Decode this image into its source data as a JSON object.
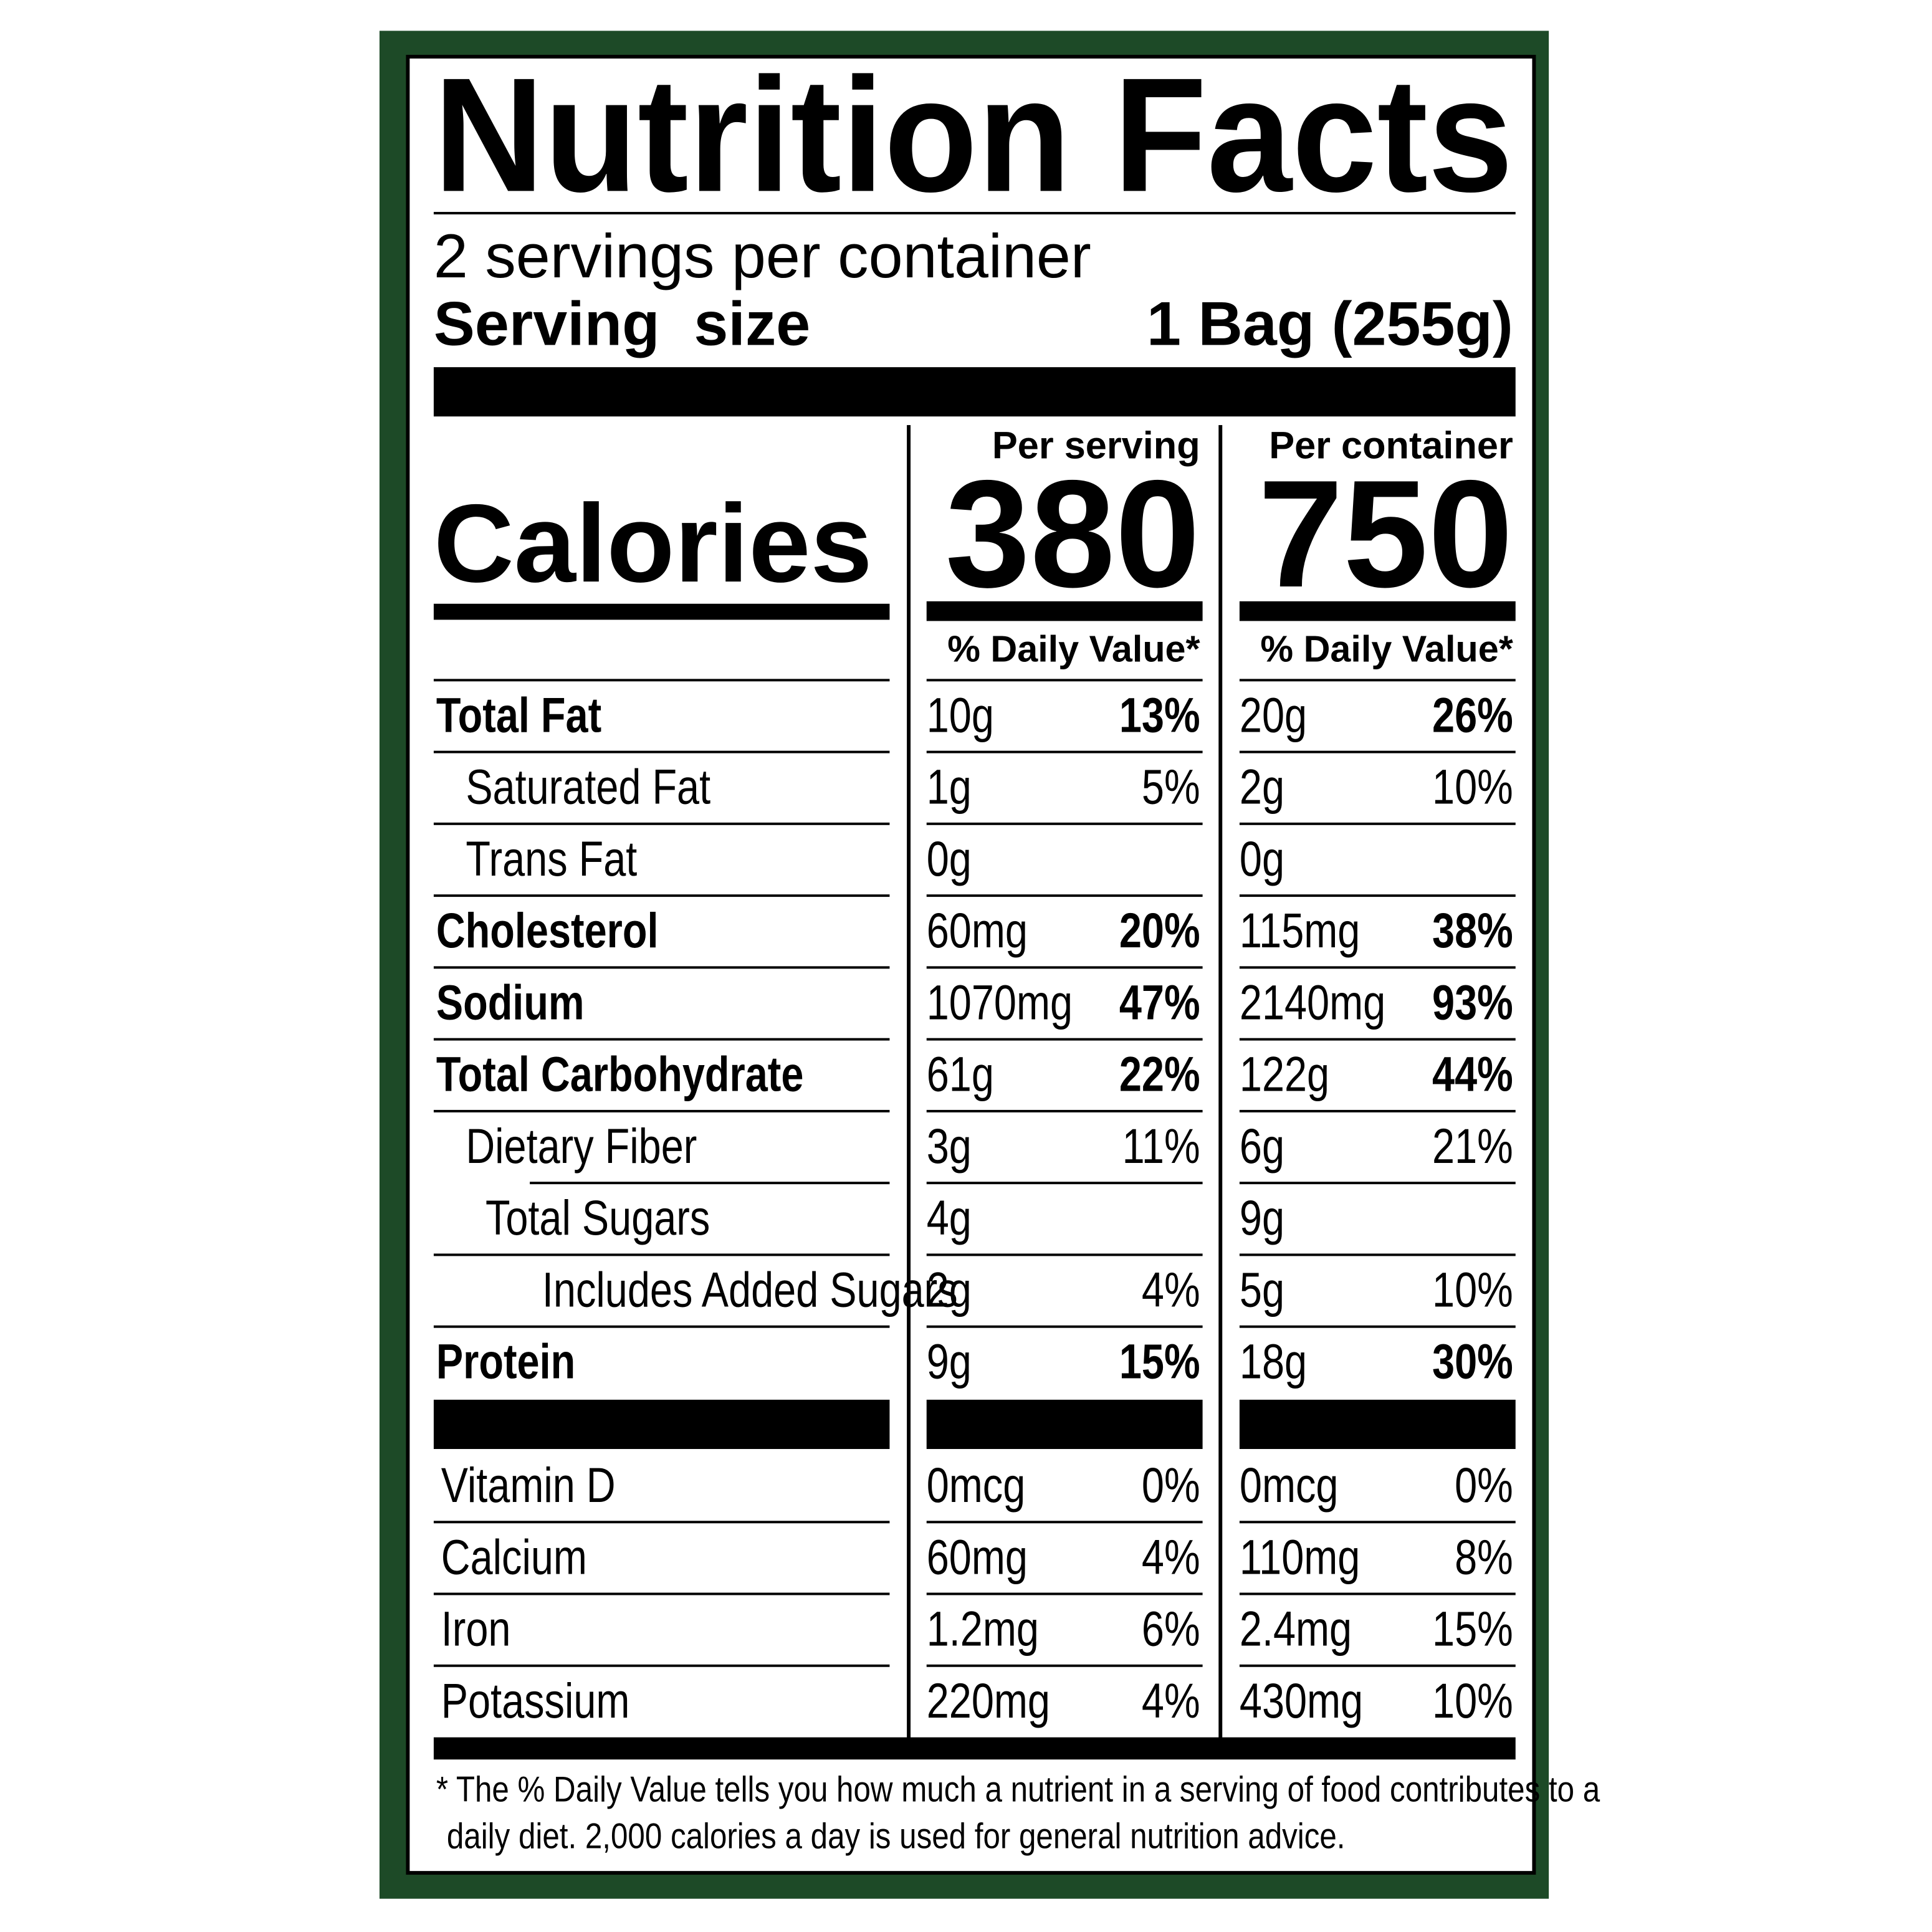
{
  "header": {
    "title": "Nutrition Facts",
    "servings_per_container": "2 servings per container",
    "serving_size_label": "Serving  size",
    "serving_size_value": "1 Bag (255g)"
  },
  "columns": [
    {
      "heading": "Per serving",
      "calories": "380",
      "daily_value_heading": "% Daily Value*"
    },
    {
      "heading": "Per container",
      "calories": "750",
      "daily_value_heading": "% Daily Value*"
    }
  ],
  "calories_label": "Calories",
  "nutrients": [
    {
      "name": "Total Fat",
      "amounts": [
        "10g",
        "20g"
      ],
      "daily_values": [
        "13%",
        "26%"
      ]
    },
    {
      "name": "Saturated Fat",
      "amounts": [
        "1g",
        "2g"
      ],
      "daily_values": [
        "5%",
        "10%"
      ]
    },
    {
      "name": "Trans Fat",
      "amounts": [
        "0g",
        "0g"
      ],
      "daily_values": [
        null,
        null
      ]
    },
    {
      "name": "Cholesterol",
      "amounts": [
        "60mg",
        "115mg"
      ],
      "daily_values": [
        "20%",
        "38%"
      ]
    },
    {
      "name": "Sodium",
      "amounts": [
        "1070mg",
        "2140mg"
      ],
      "daily_values": [
        "47%",
        "93%"
      ]
    },
    {
      "name": "Total Carbohydrate",
      "amounts": [
        "61g",
        "122g"
      ],
      "daily_values": [
        "22%",
        "44%"
      ]
    },
    {
      "name": "Dietary Fiber",
      "amounts": [
        "3g",
        "6g"
      ],
      "daily_values": [
        "11%",
        "21%"
      ]
    },
    {
      "name": "Total Sugars",
      "amounts": [
        "4g",
        "9g"
      ],
      "daily_values": [
        null,
        null
      ]
    },
    {
      "name": "Includes Added Sugars",
      "amounts": [
        "2g",
        "5g"
      ],
      "daily_values": [
        "4%",
        "10%"
      ]
    },
    {
      "name": "Protein",
      "amounts": [
        "9g",
        "18g"
      ],
      "daily_values": [
        "15%",
        "30%"
      ]
    }
  ],
  "vitamins": [
    {
      "name": "Vitamin D",
      "amounts": [
        "0mcg",
        "0mcg"
      ],
      "daily_values": [
        "0%",
        "0%"
      ]
    },
    {
      "name": "Calcium",
      "amounts": [
        "60mg",
        "110mg"
      ],
      "daily_values": [
        "4%",
        "8%"
      ]
    },
    {
      "name": "Iron",
      "amounts": [
        "1.2mg",
        "2.4mg"
      ],
      "daily_values": [
        "6%",
        "15%"
      ]
    },
    {
      "name": "Potassium",
      "amounts": [
        "220mg",
        "430mg"
      ],
      "daily_values": [
        "4%",
        "10%"
      ]
    }
  ],
  "footnote": [
    "* The % Daily Value tells you how much a nutrient in a serving of food contributes to a",
    "daily diet. 2,000 calories a day is used for general nutrition advice."
  ]
}
